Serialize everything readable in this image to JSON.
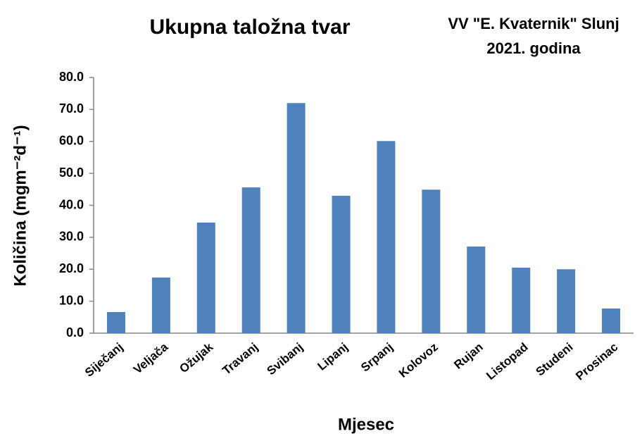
{
  "chart_data": {
    "type": "bar",
    "title": "Ukupna taložna tvar",
    "subtitle": [
      "VV \"E. Kvaternik\" Slunj",
      "2021. godina"
    ],
    "xlabel": "Mjesec",
    "ylabel": "Količina (mgm⁻²d⁻¹)",
    "categories": [
      "Siječanj",
      "Veljača",
      "Ožujak",
      "Travanj",
      "Svibanj",
      "Lipanj",
      "Srpanj",
      "Kolovoz",
      "Rujan",
      "Listopad",
      "Studeni",
      "Prosinac"
    ],
    "values": [
      6.6,
      17.4,
      34.6,
      45.6,
      72.0,
      43.0,
      60.1,
      44.9,
      27.1,
      20.5,
      20.0,
      7.7
    ],
    "color": "#4f81bd",
    "ylim": [
      0,
      80
    ],
    "yticks": [
      {
        "value": 0,
        "label": "0.0"
      },
      {
        "value": 10,
        "label": "10.0"
      },
      {
        "value": 20,
        "label": "20.0"
      },
      {
        "value": 30,
        "label": "30.0"
      },
      {
        "value": 40,
        "label": "40.0"
      },
      {
        "value": 50,
        "label": "50.0"
      },
      {
        "value": 60,
        "label": "60.0"
      },
      {
        "value": 70,
        "label": "70.0"
      },
      {
        "value": 80,
        "label": "80.0"
      }
    ],
    "grid": false
  }
}
